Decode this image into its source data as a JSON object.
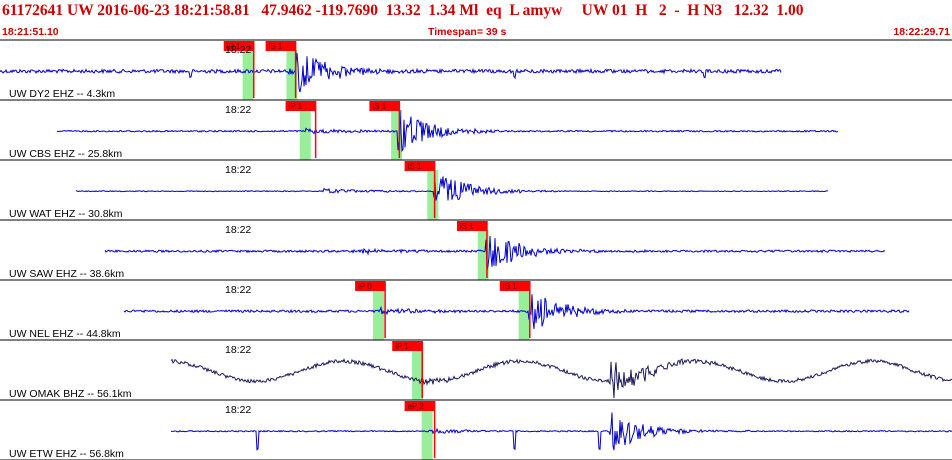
{
  "header": {
    "title": "61172641 UW 2016-06-23 18:21:58.81   47.9462 -119.7690  13.32  1.34 Ml  eq  L amyw     UW 01  H   2  -  H N3   12.32  1.00",
    "start_time": "18:21:51.10",
    "timespan": "Timespan=  39 s",
    "end_time": "18:22:29.71"
  },
  "colors": {
    "header_text": "#cc0000",
    "trace": "#0000cc",
    "trace_dark": "#1a1a5a",
    "pick_flag": "#ff0000",
    "pick_window": "#99ee99",
    "separator": "#000000"
  },
  "panels": [
    {
      "label": "UW DY2 EHZ -- 4.3km",
      "time": "18:22",
      "amp": 0.6,
      "dark": false,
      "trace_start": 0.0,
      "trace_end": 0.82,
      "p_arrival": 0.3,
      "s_arrival": 0.31,
      "spikes": [
        0.2,
        0.54,
        0.74
      ],
      "picks": [
        {
          "label": "iP 1",
          "x": 0.235,
          "win": 0.258
        },
        {
          "label": "iS 1",
          "x": 0.279,
          "win": 0.304
        }
      ]
    },
    {
      "label": "UW CBS EHZ -- 25.8km",
      "time": "18:22",
      "amp": 0.25,
      "dark": false,
      "trace_start": 0.06,
      "trace_end": 0.88,
      "p_arrival": 0.32,
      "s_arrival": 0.418,
      "spikes": [],
      "picks": [
        {
          "label": "iP 1",
          "x": 0.3,
          "win": 0.318
        },
        {
          "label": "iS 1",
          "x": 0.388,
          "win": 0.414
        }
      ]
    },
    {
      "label": "UW WAT EHZ -- 30.8km",
      "time": "18:22",
      "amp": 0.15,
      "dark": false,
      "trace_start": 0.08,
      "trace_end": 0.87,
      "p_arrival": 0.34,
      "s_arrival": 0.455,
      "spikes": [],
      "picks": [
        {
          "label": "iS 1",
          "x": 0.425,
          "win": 0.452
        }
      ]
    },
    {
      "label": "UW SAW EHZ -- 38.6km",
      "time": "18:22",
      "amp": 0.35,
      "dark": false,
      "trace_start": 0.11,
      "trace_end": 0.93,
      "p_arrival": 0.37,
      "s_arrival": 0.51,
      "spikes": [],
      "picks": [
        {
          "label": "iS 1",
          "x": 0.48,
          "win": 0.505
        }
      ]
    },
    {
      "label": "UW NEL EHZ -- 44.8km",
      "time": "18:22",
      "amp": 0.4,
      "dark": false,
      "trace_start": 0.13,
      "trace_end": 0.955,
      "p_arrival": 0.4,
      "s_arrival": 0.555,
      "spikes": [],
      "picks": [
        {
          "label": "iP 0",
          "x": 0.373,
          "win": 0.395
        },
        {
          "label": "iS 1",
          "x": 0.525,
          "win": 0.548
        }
      ]
    },
    {
      "label": "UW OMAK BHZ -- 56.1km",
      "time": "18:22",
      "amp": 0.6,
      "dark": true,
      "trace_start": 0.18,
      "trace_end": 1.0,
      "p_arrival": 0.44,
      "s_arrival": 0.64,
      "spikes": [],
      "picks": [
        {
          "label": "iP 1",
          "x": 0.412,
          "win": 0.436
        }
      ]
    },
    {
      "label": "UW ETW EHZ -- 56.8km",
      "time": "18:22",
      "amp": 0.2,
      "dark": false,
      "trace_start": 0.18,
      "trace_end": 1.0,
      "p_arrival": 0.45,
      "s_arrival": 0.64,
      "spikes": [
        0.27,
        0.54,
        0.63
      ],
      "picks": [
        {
          "label": "eP 2",
          "x": 0.425,
          "win": 0.446
        }
      ]
    }
  ]
}
